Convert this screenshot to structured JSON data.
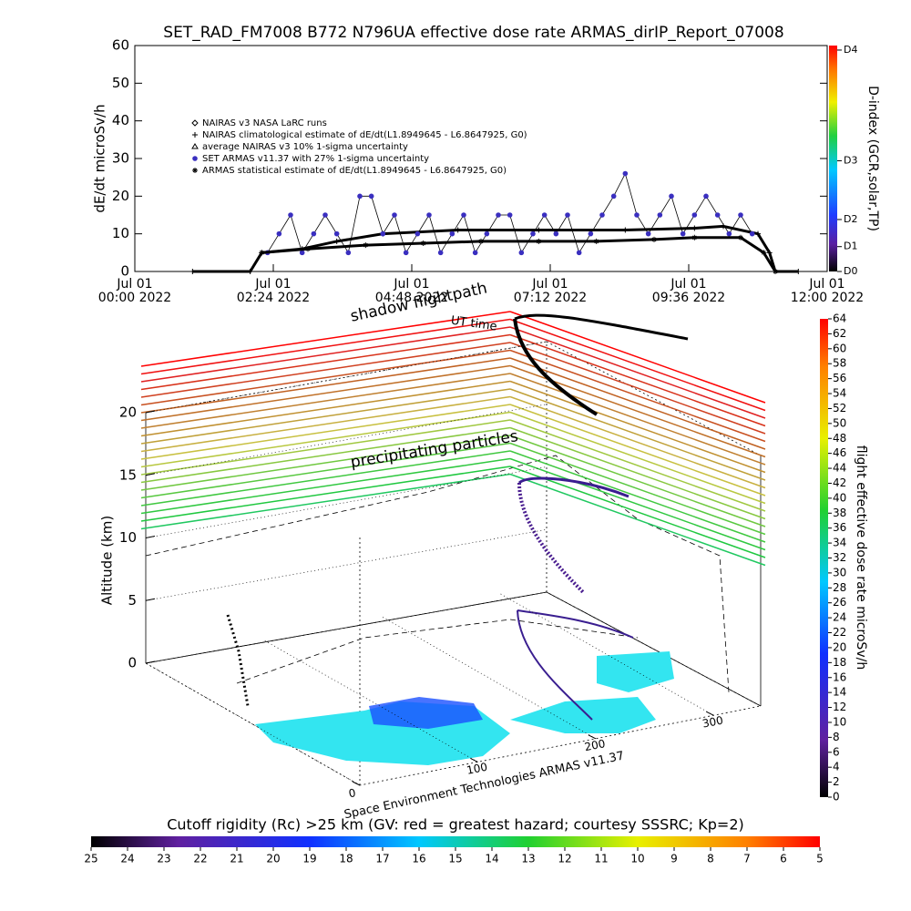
{
  "chart_data": [
    {
      "type": "line",
      "title": "SET_RAD_FM7008   B772 N796UA effective dose rate ARMAS_dirIP_Report_07008",
      "ylabel": "dE/dt microSv/h",
      "xlim": [
        0,
        12
      ],
      "xticks": [
        {
          "value": 0,
          "label": "Jul 01\n00:00 2022"
        },
        {
          "value": 2.4,
          "label": "Jul 01\n02:24 2022"
        },
        {
          "value": 4.8,
          "label": "Jul 01\n04:48 2022"
        },
        {
          "value": 7.2,
          "label": "Jul 01\n07:12 2022"
        },
        {
          "value": 9.6,
          "label": "Jul 01\n09:36 2022"
        },
        {
          "value": 12,
          "label": "Jul 01\n12:00 2022"
        }
      ],
      "ylim": [
        0,
        60
      ],
      "yticks": [
        0,
        10,
        20,
        30,
        40,
        50,
        60
      ],
      "series": [
        {
          "name": "NAIRAS v3 NASA LaRC runs",
          "marker": "diamond",
          "color": "#000000"
        },
        {
          "name": "NAIRAS climatological estimate of dE/dt(L1.8949645 - L6.8647925, G0)",
          "marker": "plus",
          "color": "#000000",
          "x": [
            1.0,
            2.0,
            2.2,
            2.9,
            3.5,
            4.3,
            5.6,
            7.0,
            8.5,
            9.7,
            10.2,
            10.8,
            11.0,
            11.1,
            11.5
          ],
          "values": [
            0,
            0,
            5,
            6,
            8,
            10,
            11,
            11,
            11,
            11.5,
            12,
            10,
            5,
            0,
            0
          ]
        },
        {
          "name": "average NAIRAS v3 10% 1-sigma uncertainty",
          "marker": "triangle",
          "color": "#000000"
        },
        {
          "name": "SET ARMAS v11.37 with 27% 1-sigma uncertainty",
          "marker": "circle",
          "color": "#3a2fc0",
          "x": [
            2.3,
            2.5,
            2.7,
            2.9,
            3.1,
            3.3,
            3.5,
            3.7,
            3.9,
            4.1,
            4.3,
            4.5,
            4.7,
            4.9,
            5.1,
            5.3,
            5.5,
            5.7,
            5.9,
            6.1,
            6.3,
            6.5,
            6.7,
            6.9,
            7.1,
            7.3,
            7.5,
            7.7,
            7.9,
            8.1,
            8.3,
            8.5,
            8.7,
            8.9,
            9.1,
            9.3,
            9.5,
            9.7,
            9.9,
            10.1,
            10.3,
            10.5,
            10.7
          ],
          "values": [
            5,
            10,
            15,
            5,
            10,
            15,
            10,
            5,
            20,
            20,
            10,
            15,
            5,
            10,
            15,
            5,
            10,
            15,
            5,
            10,
            15,
            15,
            5,
            10,
            15,
            10,
            15,
            5,
            10,
            15,
            20,
            26,
            15,
            10,
            15,
            20,
            10,
            15,
            20,
            15,
            10,
            15,
            10
          ]
        },
        {
          "name": "ARMAS statistical estimate of dE/dt(L1.8949645 - L6.8647925, G0)",
          "marker": "star",
          "color": "#000000",
          "x": [
            2.2,
            3.0,
            4.0,
            5.0,
            6.0,
            7.0,
            8.0,
            9.0,
            9.7,
            10.5,
            10.9,
            11.1
          ],
          "values": [
            5,
            6,
            7,
            7.5,
            8,
            8,
            8,
            8.5,
            9,
            9,
            5,
            0
          ]
        }
      ],
      "y2label": "D-index (GCR,solar,TP)",
      "y2lim": [
        0,
        1
      ],
      "y2ticks": [
        {
          "value": 0,
          "label": "D0"
        },
        {
          "value": 0.11,
          "label": "D1"
        },
        {
          "value": 0.23,
          "label": "D2"
        },
        {
          "value": 0.49,
          "label": "D3"
        },
        {
          "value": 0.98,
          "label": "D4"
        }
      ]
    },
    {
      "type": "surface3d",
      "annotations": [
        "shadow flightpath",
        "UT time",
        "precipitating particles"
      ],
      "zlabel": "Altitude (km)",
      "zlim": [
        0,
        20
      ],
      "zticks": [
        0,
        5,
        10,
        15,
        20
      ],
      "xlim": [
        0,
        340
      ],
      "xticks": [
        0,
        100,
        200,
        300
      ],
      "credit": "Space Environment Technologies ARMAS v11.37",
      "colorbar": {
        "label": "flight effective dose rate microSv/h",
        "lim": [
          0,
          64
        ],
        "ticks": [
          0,
          2,
          4,
          6,
          8,
          10,
          12,
          14,
          16,
          18,
          20,
          22,
          24,
          26,
          28,
          30,
          32,
          34,
          36,
          38,
          40,
          42,
          44,
          46,
          48,
          50,
          52,
          54,
          56,
          58,
          60,
          62,
          64
        ]
      },
      "colorbar2": {
        "label": "Cutoff rigidity (Rc) >25 km (GV: red = greatest hazard; courtesy SSSRC; Kp=2)",
        "lim": [
          25,
          5
        ],
        "ticks": [
          25,
          24,
          23,
          22,
          21,
          20,
          19,
          18,
          17,
          16,
          15,
          14,
          13,
          12,
          11,
          10,
          9,
          8,
          7,
          6,
          5
        ]
      }
    }
  ]
}
